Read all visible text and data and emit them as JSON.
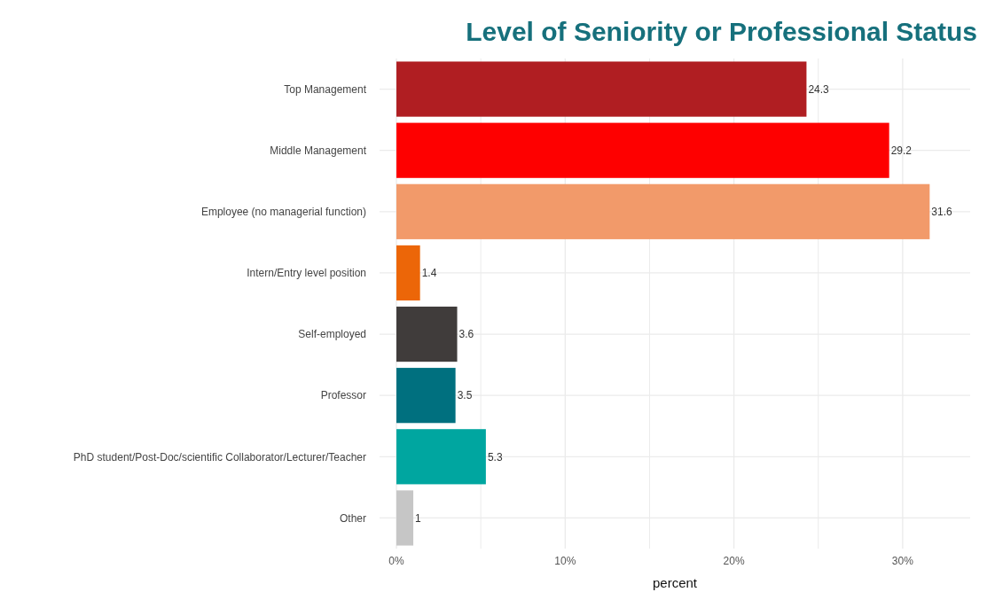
{
  "chart_data": {
    "type": "bar",
    "orientation": "horizontal",
    "title": "Level of Seniority or Professional Status",
    "xlabel": "percent",
    "categories": [
      "Top Management",
      "Middle Management",
      "Employee (no managerial function)",
      "Intern/Entry level position",
      "Self-employed",
      "Professor",
      "PhD student/Post-Doc/scientific Collaborator/Lecturer/Teacher",
      "Other"
    ],
    "values": [
      24.3,
      29.2,
      31.6,
      1.4,
      3.6,
      3.5,
      5.3,
      1
    ],
    "colors": [
      "#b01e22",
      "#fe0000",
      "#f29a6a",
      "#ec6608",
      "#403c3b",
      "#00707f",
      "#00a6a0",
      "#c6c6c6"
    ],
    "data_labels": true,
    "xlim": [
      -1,
      34
    ],
    "xticks": [
      {
        "value": 0,
        "label": "0%"
      },
      {
        "value": 5,
        "label": null
      },
      {
        "value": 10,
        "label": "10%"
      },
      {
        "value": 15,
        "label": null
      },
      {
        "value": 20,
        "label": "20%"
      },
      {
        "value": 25,
        "label": null
      },
      {
        "value": 30,
        "label": "30%"
      }
    ],
    "grid": true
  }
}
